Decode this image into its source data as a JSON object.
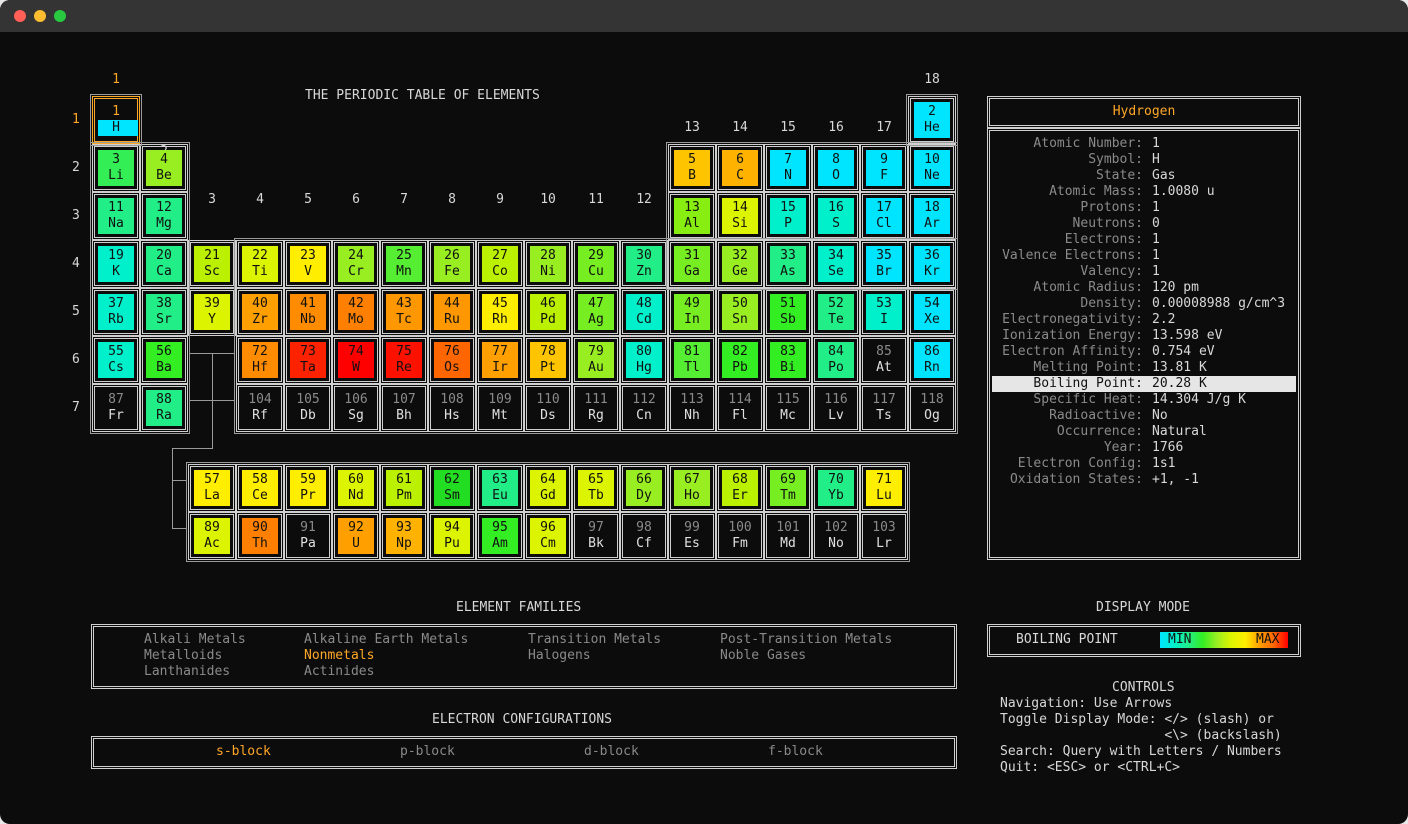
{
  "window": {
    "controls": [
      {
        "name": "close",
        "color": "#ff5f57"
      },
      {
        "name": "minimize",
        "color": "#febc2e"
      },
      {
        "name": "maximize",
        "color": "#28c840"
      }
    ]
  },
  "table": {
    "title": "THE PERIODIC TABLE OF ELEMENTS",
    "groups": [
      "1",
      "2",
      "3",
      "4",
      "5",
      "6",
      "7",
      "8",
      "9",
      "10",
      "11",
      "12",
      "13",
      "14",
      "15",
      "16",
      "17",
      "18"
    ],
    "periods": [
      "1",
      "2",
      "3",
      "4",
      "5",
      "6",
      "7"
    ],
    "selected_number": 1,
    "elements": [
      {
        "n": "1",
        "s": "H",
        "g": 1,
        "p": 1,
        "c": "#00e5ff"
      },
      {
        "n": "2",
        "s": "He",
        "g": 18,
        "p": 1,
        "c": "#00e5ff"
      },
      {
        "n": "3",
        "s": "Li",
        "g": 1,
        "p": 2,
        "c": "#33ee55"
      },
      {
        "n": "4",
        "s": "Be",
        "g": 2,
        "p": 2,
        "c": "#99ee22"
      },
      {
        "n": "5",
        "s": "B",
        "g": 13,
        "p": 2,
        "c": "#ffc400"
      },
      {
        "n": "6",
        "s": "C",
        "g": 14,
        "p": 2,
        "c": "#ffb300"
      },
      {
        "n": "7",
        "s": "N",
        "g": 15,
        "p": 2,
        "c": "#00e5ff"
      },
      {
        "n": "8",
        "s": "O",
        "g": 16,
        "p": 2,
        "c": "#00e5ff"
      },
      {
        "n": "9",
        "s": "F",
        "g": 17,
        "p": 2,
        "c": "#00e5ff"
      },
      {
        "n": "10",
        "s": "Ne",
        "g": 18,
        "p": 2,
        "c": "#00e5ff"
      },
      {
        "n": "11",
        "s": "Na",
        "g": 1,
        "p": 3,
        "c": "#22ee88"
      },
      {
        "n": "12",
        "s": "Mg",
        "g": 2,
        "p": 3,
        "c": "#22ee88"
      },
      {
        "n": "13",
        "s": "Al",
        "g": 13,
        "p": 3,
        "c": "#88ee11"
      },
      {
        "n": "14",
        "s": "Si",
        "g": 14,
        "p": 3,
        "c": "#ddf400"
      },
      {
        "n": "15",
        "s": "P",
        "g": 15,
        "p": 3,
        "c": "#00f0cc"
      },
      {
        "n": "16",
        "s": "S",
        "g": 16,
        "p": 3,
        "c": "#00f0cc"
      },
      {
        "n": "17",
        "s": "Cl",
        "g": 17,
        "p": 3,
        "c": "#00e5ff"
      },
      {
        "n": "18",
        "s": "Ar",
        "g": 18,
        "p": 3,
        "c": "#00e5ff"
      },
      {
        "n": "19",
        "s": "K",
        "g": 1,
        "p": 4,
        "c": "#00f0cc"
      },
      {
        "n": "20",
        "s": "Ca",
        "g": 2,
        "p": 4,
        "c": "#22ee88"
      },
      {
        "n": "21",
        "s": "Sc",
        "g": 3,
        "p": 4,
        "c": "#bbf000"
      },
      {
        "n": "22",
        "s": "Ti",
        "g": 4,
        "p": 4,
        "c": "#ddf400"
      },
      {
        "n": "23",
        "s": "V",
        "g": 5,
        "p": 4,
        "c": "#ffee00"
      },
      {
        "n": "24",
        "s": "Cr",
        "g": 6,
        "p": 4,
        "c": "#99ee22"
      },
      {
        "n": "25",
        "s": "Mn",
        "g": 7,
        "p": 4,
        "c": "#55ee33"
      },
      {
        "n": "26",
        "s": "Fe",
        "g": 8,
        "p": 4,
        "c": "#99ee22"
      },
      {
        "n": "27",
        "s": "Co",
        "g": 9,
        "p": 4,
        "c": "#bbf000"
      },
      {
        "n": "28",
        "s": "Ni",
        "g": 10,
        "p": 4,
        "c": "#99ee22"
      },
      {
        "n": "29",
        "s": "Cu",
        "g": 11,
        "p": 4,
        "c": "#77ee22"
      },
      {
        "n": "30",
        "s": "Zn",
        "g": 12,
        "p": 4,
        "c": "#22ee88"
      },
      {
        "n": "31",
        "s": "Ga",
        "g": 13,
        "p": 4,
        "c": "#77ee22"
      },
      {
        "n": "32",
        "s": "Ge",
        "g": 14,
        "p": 4,
        "c": "#99ee22"
      },
      {
        "n": "33",
        "s": "As",
        "g": 15,
        "p": 4,
        "c": "#22ee88"
      },
      {
        "n": "34",
        "s": "Se",
        "g": 16,
        "p": 4,
        "c": "#00f0cc"
      },
      {
        "n": "35",
        "s": "Br",
        "g": 17,
        "p": 4,
        "c": "#00e5ff"
      },
      {
        "n": "36",
        "s": "Kr",
        "g": 18,
        "p": 4,
        "c": "#00e5ff"
      },
      {
        "n": "37",
        "s": "Rb",
        "g": 1,
        "p": 5,
        "c": "#00f0cc"
      },
      {
        "n": "38",
        "s": "Sr",
        "g": 2,
        "p": 5,
        "c": "#22ee88"
      },
      {
        "n": "39",
        "s": "Y",
        "g": 3,
        "p": 5,
        "c": "#ddf400"
      },
      {
        "n": "40",
        "s": "Zr",
        "g": 4,
        "p": 5,
        "c": "#ffa000"
      },
      {
        "n": "41",
        "s": "Nb",
        "g": 5,
        "p": 5,
        "c": "#ff8c00"
      },
      {
        "n": "42",
        "s": "Mo",
        "g": 6,
        "p": 5,
        "c": "#ff8000"
      },
      {
        "n": "43",
        "s": "Tc",
        "g": 7,
        "p": 5,
        "c": "#ff9800"
      },
      {
        "n": "44",
        "s": "Ru",
        "g": 8,
        "p": 5,
        "c": "#ff9800"
      },
      {
        "n": "45",
        "s": "Rh",
        "g": 9,
        "p": 5,
        "c": "#ffee00"
      },
      {
        "n": "46",
        "s": "Pd",
        "g": 10,
        "p": 5,
        "c": "#bbf000"
      },
      {
        "n": "47",
        "s": "Ag",
        "g": 11,
        "p": 5,
        "c": "#77ee22"
      },
      {
        "n": "48",
        "s": "Cd",
        "g": 12,
        "p": 5,
        "c": "#00f0cc"
      },
      {
        "n": "49",
        "s": "In",
        "g": 13,
        "p": 5,
        "c": "#77ee22"
      },
      {
        "n": "50",
        "s": "Sn",
        "g": 14,
        "p": 5,
        "c": "#99ee22"
      },
      {
        "n": "51",
        "s": "Sb",
        "g": 15,
        "p": 5,
        "c": "#33ee22"
      },
      {
        "n": "52",
        "s": "Te",
        "g": 16,
        "p": 5,
        "c": "#22ee88"
      },
      {
        "n": "53",
        "s": "I",
        "g": 17,
        "p": 5,
        "c": "#00f0cc"
      },
      {
        "n": "54",
        "s": "Xe",
        "g": 18,
        "p": 5,
        "c": "#00e5ff"
      },
      {
        "n": "55",
        "s": "Cs",
        "g": 1,
        "p": 6,
        "c": "#00f0cc"
      },
      {
        "n": "56",
        "s": "Ba",
        "g": 2,
        "p": 6,
        "c": "#33ee22"
      },
      {
        "n": "72",
        "s": "Hf",
        "g": 4,
        "p": 6,
        "c": "#ff8c00"
      },
      {
        "n": "73",
        "s": "Ta",
        "g": 5,
        "p": 6,
        "c": "#ff2200"
      },
      {
        "n": "74",
        "s": "W",
        "g": 6,
        "p": 6,
        "c": "#ff0000"
      },
      {
        "n": "75",
        "s": "Re",
        "g": 7,
        "p": 6,
        "c": "#ff1100"
      },
      {
        "n": "76",
        "s": "Os",
        "g": 8,
        "p": 6,
        "c": "#ff6600"
      },
      {
        "n": "77",
        "s": "Ir",
        "g": 9,
        "p": 6,
        "c": "#ffa000"
      },
      {
        "n": "78",
        "s": "Pt",
        "g": 10,
        "p": 6,
        "c": "#ffc400"
      },
      {
        "n": "79",
        "s": "Au",
        "g": 11,
        "p": 6,
        "c": "#99ee22"
      },
      {
        "n": "80",
        "s": "Hg",
        "g": 12,
        "p": 6,
        "c": "#00f0cc"
      },
      {
        "n": "81",
        "s": "Tl",
        "g": 13,
        "p": 6,
        "c": "#55ee33"
      },
      {
        "n": "82",
        "s": "Pb",
        "g": 14,
        "p": 6,
        "c": "#33ee22"
      },
      {
        "n": "83",
        "s": "Bi",
        "g": 15,
        "p": 6,
        "c": "#33ee22"
      },
      {
        "n": "84",
        "s": "Po",
        "g": 16,
        "p": 6,
        "c": "#22ee88"
      },
      {
        "n": "85",
        "s": "At",
        "g": 17,
        "p": 6,
        "c": ""
      },
      {
        "n": "86",
        "s": "Rn",
        "g": 18,
        "p": 6,
        "c": "#00e5ff"
      },
      {
        "n": "87",
        "s": "Fr",
        "g": 1,
        "p": 7,
        "c": ""
      },
      {
        "n": "88",
        "s": "Ra",
        "g": 2,
        "p": 7,
        "c": "#22ee88"
      },
      {
        "n": "104",
        "s": "Rf",
        "g": 4,
        "p": 7,
        "c": ""
      },
      {
        "n": "105",
        "s": "Db",
        "g": 5,
        "p": 7,
        "c": ""
      },
      {
        "n": "106",
        "s": "Sg",
        "g": 6,
        "p": 7,
        "c": ""
      },
      {
        "n": "107",
        "s": "Bh",
        "g": 7,
        "p": 7,
        "c": ""
      },
      {
        "n": "108",
        "s": "Hs",
        "g": 8,
        "p": 7,
        "c": ""
      },
      {
        "n": "109",
        "s": "Mt",
        "g": 9,
        "p": 7,
        "c": ""
      },
      {
        "n": "110",
        "s": "Ds",
        "g": 10,
        "p": 7,
        "c": ""
      },
      {
        "n": "111",
        "s": "Rg",
        "g": 11,
        "p": 7,
        "c": ""
      },
      {
        "n": "112",
        "s": "Cn",
        "g": 12,
        "p": 7,
        "c": ""
      },
      {
        "n": "113",
        "s": "Nh",
        "g": 13,
        "p": 7,
        "c": ""
      },
      {
        "n": "114",
        "s": "Fl",
        "g": 14,
        "p": 7,
        "c": ""
      },
      {
        "n": "115",
        "s": "Mc",
        "g": 15,
        "p": 7,
        "c": ""
      },
      {
        "n": "116",
        "s": "Lv",
        "g": 16,
        "p": 7,
        "c": ""
      },
      {
        "n": "117",
        "s": "Ts",
        "g": 17,
        "p": 7,
        "c": ""
      },
      {
        "n": "118",
        "s": "Og",
        "g": 18,
        "p": 7,
        "c": ""
      },
      {
        "n": "57",
        "s": "La",
        "g": 3,
        "p": 9,
        "c": "#ffee00"
      },
      {
        "n": "58",
        "s": "Ce",
        "g": 4,
        "p": 9,
        "c": "#ffee00"
      },
      {
        "n": "59",
        "s": "Pr",
        "g": 5,
        "p": 9,
        "c": "#ffee00"
      },
      {
        "n": "60",
        "s": "Nd",
        "g": 6,
        "p": 9,
        "c": "#ddf400"
      },
      {
        "n": "61",
        "s": "Pm",
        "g": 7,
        "p": 9,
        "c": "#bbf000"
      },
      {
        "n": "62",
        "s": "Sm",
        "g": 8,
        "p": 9,
        "c": "#22dd22"
      },
      {
        "n": "63",
        "s": "Eu",
        "g": 9,
        "p": 9,
        "c": "#22ee88"
      },
      {
        "n": "64",
        "s": "Gd",
        "g": 10,
        "p": 9,
        "c": "#ddf400"
      },
      {
        "n": "65",
        "s": "Tb",
        "g": 11,
        "p": 9,
        "c": "#ddf400"
      },
      {
        "n": "66",
        "s": "Dy",
        "g": 12,
        "p": 9,
        "c": "#99ee22"
      },
      {
        "n": "67",
        "s": "Ho",
        "g": 13,
        "p": 9,
        "c": "#99ee22"
      },
      {
        "n": "68",
        "s": "Er",
        "g": 14,
        "p": 9,
        "c": "#bbf000"
      },
      {
        "n": "69",
        "s": "Tm",
        "g": 15,
        "p": 9,
        "c": "#77ee22"
      },
      {
        "n": "70",
        "s": "Yb",
        "g": 16,
        "p": 9,
        "c": "#22ee88"
      },
      {
        "n": "71",
        "s": "Lu",
        "g": 17,
        "p": 9,
        "c": "#ffee00"
      },
      {
        "n": "89",
        "s": "Ac",
        "g": 3,
        "p": 10,
        "c": "#ddf400"
      },
      {
        "n": "90",
        "s": "Th",
        "g": 4,
        "p": 10,
        "c": "#ff8000"
      },
      {
        "n": "91",
        "s": "Pa",
        "g": 5,
        "p": 10,
        "c": ""
      },
      {
        "n": "92",
        "s": "U",
        "g": 6,
        "p": 10,
        "c": "#ffa000"
      },
      {
        "n": "93",
        "s": "Np",
        "g": 7,
        "p": 10,
        "c": "#ffb300"
      },
      {
        "n": "94",
        "s": "Pu",
        "g": 8,
        "p": 10,
        "c": "#ddf400"
      },
      {
        "n": "95",
        "s": "Am",
        "g": 9,
        "p": 10,
        "c": "#33ee22"
      },
      {
        "n": "96",
        "s": "Cm",
        "g": 10,
        "p": 10,
        "c": "#ddf400"
      },
      {
        "n": "97",
        "s": "Bk",
        "g": 11,
        "p": 10,
        "c": ""
      },
      {
        "n": "98",
        "s": "Cf",
        "g": 12,
        "p": 10,
        "c": ""
      },
      {
        "n": "99",
        "s": "Es",
        "g": 13,
        "p": 10,
        "c": ""
      },
      {
        "n": "100",
        "s": "Fm",
        "g": 14,
        "p": 10,
        "c": ""
      },
      {
        "n": "101",
        "s": "Md",
        "g": 15,
        "p": 10,
        "c": ""
      },
      {
        "n": "102",
        "s": "No",
        "g": 16,
        "p": 10,
        "c": ""
      },
      {
        "n": "103",
        "s": "Lr",
        "g": 17,
        "p": 10,
        "c": ""
      }
    ]
  },
  "details": {
    "name": "Hydrogen",
    "highlighted_label": "Boiling Point",
    "properties": [
      {
        "label": "Atomic Number:",
        "value": "1"
      },
      {
        "label": "Symbol:",
        "value": "H"
      },
      {
        "label": "State:",
        "value": "Gas"
      },
      {
        "label": "Atomic Mass:",
        "value": "1.0080 u"
      },
      {
        "label": "Protons:",
        "value": "1"
      },
      {
        "label": "Neutrons:",
        "value": "0"
      },
      {
        "label": "Electrons:",
        "value": "1"
      },
      {
        "label": "Valence Electrons:",
        "value": "1"
      },
      {
        "label": "Valency:",
        "value": "1"
      },
      {
        "label": "Atomic Radius:",
        "value": "120 pm"
      },
      {
        "label": "Density:",
        "value": "0.00008988 g/cm^3"
      },
      {
        "label": "Electronegativity:",
        "value": "2.2"
      },
      {
        "label": "Ionization Energy:",
        "value": "13.598 eV"
      },
      {
        "label": "Electron Affinity:",
        "value": "0.754 eV"
      },
      {
        "label": "Melting Point:",
        "value": "13.81 K"
      },
      {
        "label": "Boiling Point:",
        "value": "20.28 K"
      },
      {
        "label": "Specific Heat:",
        "value": "14.304 J/g K"
      },
      {
        "label": "Radioactive:",
        "value": "No"
      },
      {
        "label": "Occurrence:",
        "value": "Natural"
      },
      {
        "label": "Year:",
        "value": "1766"
      },
      {
        "label": "Electron Config:",
        "value": "1s1"
      },
      {
        "label": "Oxidation States:",
        "value": "+1, -1"
      }
    ]
  },
  "families": {
    "title": "ELEMENT FAMILIES",
    "selected": "Nonmetals",
    "items": [
      "Alkali Metals",
      "Alkaline Earth Metals",
      "Transition Metals",
      "Post-Transition Metals",
      "Metalloids",
      "Nonmetals",
      "Halogens",
      "Noble Gases",
      "Lanthanides",
      "Actinides"
    ]
  },
  "configs": {
    "title": "ELECTRON CONFIGURATIONS",
    "selected": "s-block",
    "items": [
      "s-block",
      "p-block",
      "d-block",
      "f-block"
    ]
  },
  "display_mode": {
    "title": "DISPLAY MODE",
    "value": "BOILING POINT",
    "min_label": "MIN",
    "max_label": "MAX",
    "gradient": [
      "#00e5ff",
      "#00f0cc",
      "#22ee88",
      "#33ee22",
      "#99ee22",
      "#ddf400",
      "#ffee00",
      "#ffa000",
      "#ff6600",
      "#ff0000"
    ]
  },
  "controls": {
    "title": "CONTROLS",
    "lines": [
      "Navigation: Use Arrows",
      "Toggle Display Mode: </> (slash) or",
      "                     <\\> (backslash)",
      "Search: Query with Letters / Numbers",
      "Quit: <ESC> or <CTRL+C>"
    ]
  }
}
